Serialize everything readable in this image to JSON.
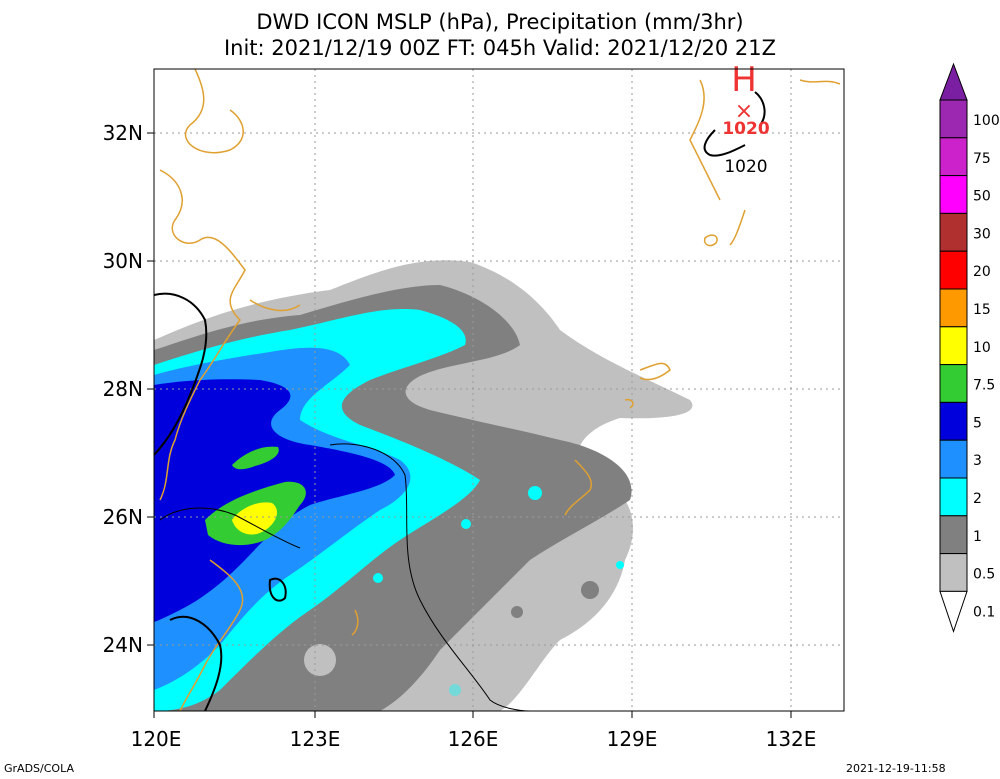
{
  "title_line1": "DWD ICON MSLP (hPa), Precipitation (mm/3hr)",
  "title_line2": "Init: 2021/12/19 00Z  FT: 045h  Valid: 2021/12/20 21Z",
  "x_ticks": [
    "120E",
    "123E",
    "126E",
    "129E",
    "132E"
  ],
  "y_ticks": [
    "32N",
    "30N",
    "28N",
    "26N",
    "24N"
  ],
  "high_marker": {
    "letter": "H",
    "value": "1020"
  },
  "isobar_labels": [
    "1020"
  ],
  "colorbar": {
    "levels": [
      "100",
      "75",
      "50",
      "30",
      "20",
      "15",
      "10",
      "7.5",
      "5",
      "3",
      "2",
      "1",
      "0.5",
      "0.1"
    ],
    "colors": [
      "#7b1fa2",
      "#9c27b0",
      "#cc22cc",
      "#ff00ff",
      "#b03030",
      "#ff0000",
      "#ff9900",
      "#ffff00",
      "#33cc33",
      "#0000dd",
      "#1e90ff",
      "#00ffff",
      "#808080",
      "#c0c0c0",
      "#ffffff"
    ]
  },
  "footer_left": "GrADS/COLA",
  "footer_right": "2021-12-19-11:58"
}
